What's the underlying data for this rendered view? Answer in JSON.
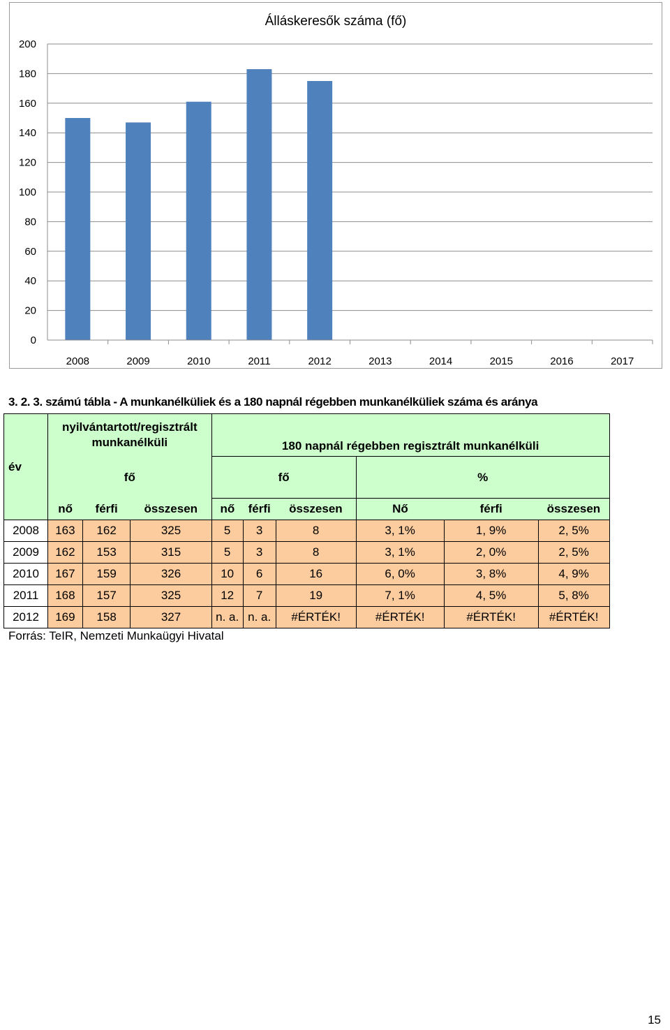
{
  "chart_data": {
    "type": "bar",
    "title": "Álláskeresők száma (fő)",
    "categories": [
      "2008",
      "2009",
      "2010",
      "2011",
      "2012",
      "2013",
      "2014",
      "2015",
      "2016",
      "2017"
    ],
    "values": [
      150,
      147,
      161,
      183,
      175,
      null,
      null,
      null,
      null,
      null
    ],
    "yticks": [
      "0",
      "20",
      "40",
      "60",
      "80",
      "100",
      "120",
      "140",
      "160",
      "180",
      "200"
    ],
    "ylim": [
      0,
      200
    ],
    "grid": true,
    "bar_color": "#4f81bd"
  },
  "table": {
    "caption": "3. 2. 3. számú tábla - A munkanélküliek és a 180 napnál régebben munkanélküliek száma és aránya",
    "header": {
      "year": "év",
      "group1": "nyilvántartott/regisztrált munkanélküli",
      "group2": "180 napnál régebben regisztrált munkanélküli",
      "unit1": "fő",
      "unit2": "fő",
      "unit3": "%",
      "cols": [
        "nő",
        "férfi",
        "összesen",
        "nő",
        "férfi",
        "összesen",
        "Nő",
        "férfi",
        "összesen"
      ]
    },
    "rows": [
      [
        "2008",
        "163",
        "162",
        "325",
        "5",
        "3",
        "8",
        "3, 1%",
        "1, 9%",
        "2, 5%"
      ],
      [
        "2009",
        "162",
        "153",
        "315",
        "5",
        "3",
        "8",
        "3, 1%",
        "2, 0%",
        "2, 5%"
      ],
      [
        "2010",
        "167",
        "159",
        "326",
        "10",
        "6",
        "16",
        "6, 0%",
        "3, 8%",
        "4, 9%"
      ],
      [
        "2011",
        "168",
        "157",
        "325",
        "12",
        "7",
        "19",
        "7, 1%",
        "4, 5%",
        "5, 8%"
      ],
      [
        "2012",
        "169",
        "158",
        "327",
        "n. a.",
        "n. a.",
        "#ÉRTÉK!",
        "#ÉRTÉK!",
        "#ÉRTÉK!",
        "#ÉRTÉK!"
      ]
    ],
    "colors": {
      "header_bg": "#ccffcc",
      "cell_bg": "#fccc9e"
    }
  },
  "source": "Forrás: TeIR, Nemzeti Munkaügyi Hivatal",
  "page_number": "15"
}
